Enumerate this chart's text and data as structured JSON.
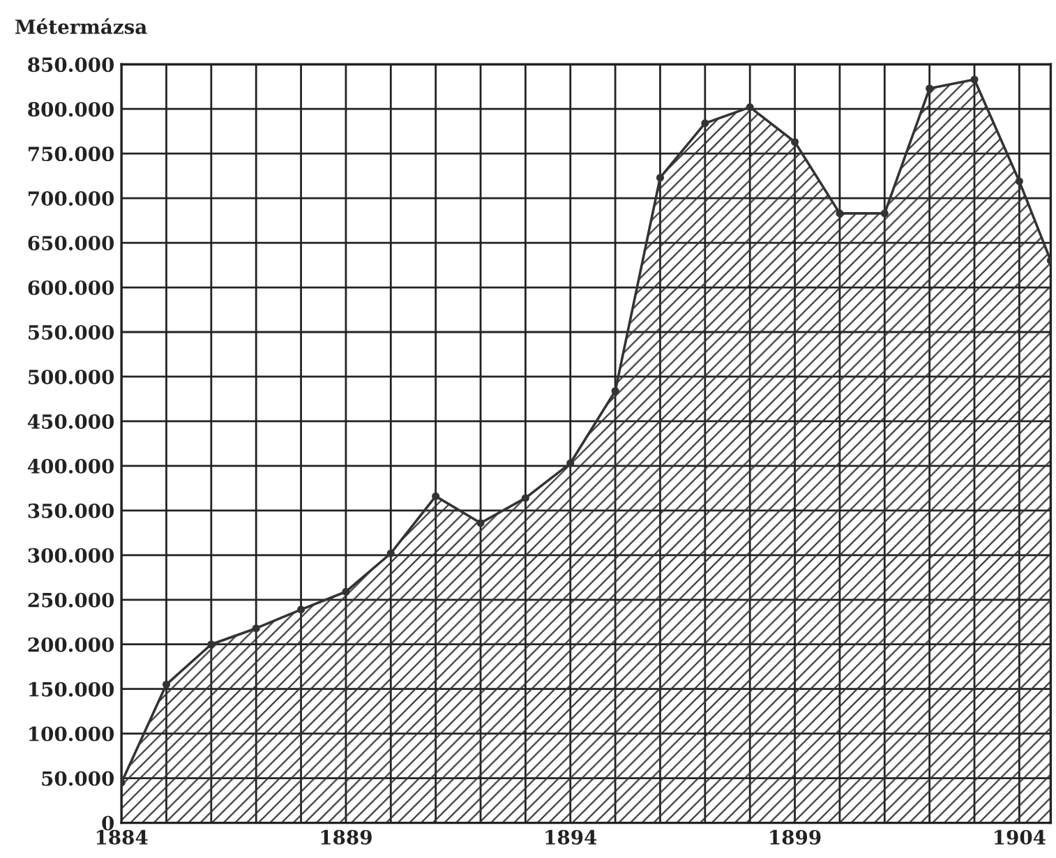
{
  "chart_data": {
    "type": "area",
    "ylabel": "Métermázsa",
    "x": [
      1884,
      1885,
      1886,
      1887,
      1888,
      1889,
      1890,
      1891,
      1892,
      1893,
      1894,
      1895,
      1896,
      1897,
      1898,
      1899,
      1900,
      1901,
      1902,
      1903,
      1904,
      1904.7
    ],
    "series": [
      {
        "color": "#333333",
        "values": [
          45000,
          155000,
          200000,
          218000,
          239000,
          259000,
          302000,
          366000,
          336000,
          364000,
          403000,
          484000,
          723000,
          784000,
          802000,
          763000,
          683000,
          683000,
          823000,
          833000,
          719000,
          630000
        ]
      }
    ],
    "xlim": [
      1884,
      1904.7
    ],
    "xticks": [
      1884,
      {
        "value": 1885,
        "label": null
      },
      {
        "value": 1886,
        "label": null
      },
      {
        "value": 1887,
        "label": null
      },
      {
        "value": 1888,
        "label": null
      },
      1889,
      {
        "value": 1890,
        "label": null
      },
      {
        "value": 1891,
        "label": null
      },
      {
        "value": 1892,
        "label": null
      },
      {
        "value": 1893,
        "label": null
      },
      1894,
      {
        "value": 1895,
        "label": null
      },
      {
        "value": 1896,
        "label": null
      },
      {
        "value": 1897,
        "label": null
      },
      {
        "value": 1898,
        "label": null
      },
      1899,
      {
        "value": 1900,
        "label": null
      },
      {
        "value": 1901,
        "label": null
      },
      {
        "value": 1902,
        "label": null
      },
      {
        "value": 1903,
        "label": null
      },
      1904
    ],
    "ylim": [
      0,
      850000
    ],
    "yticks": [
      0,
      {
        "value": 50000,
        "label": "50.000"
      },
      {
        "value": 100000,
        "label": "100.000"
      },
      {
        "value": 150000,
        "label": "150.000"
      },
      {
        "value": 200000,
        "label": "200.000"
      },
      {
        "value": 250000,
        "label": "250.000"
      },
      {
        "value": 300000,
        "label": "300.000"
      },
      {
        "value": 350000,
        "label": "350.000"
      },
      {
        "value": 400000,
        "label": "400.000"
      },
      {
        "value": 450000,
        "label": "450.000"
      },
      {
        "value": 500000,
        "label": "500.000"
      },
      {
        "value": 550000,
        "label": "550.000"
      },
      {
        "value": 600000,
        "label": "600.000"
      },
      {
        "value": 650000,
        "label": "650.000"
      },
      {
        "value": 700000,
        "label": "700.000"
      },
      {
        "value": 750000,
        "label": "750.000"
      },
      {
        "value": 800000,
        "label": "800.000"
      },
      {
        "value": 850000,
        "label": "850.000"
      }
    ],
    "grid": true,
    "marker": "circle"
  }
}
